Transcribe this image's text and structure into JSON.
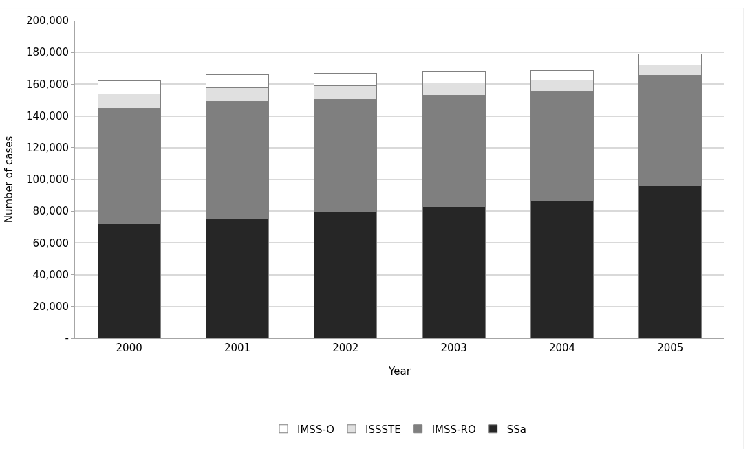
{
  "chart_data": {
    "type": "bar",
    "stacked": true,
    "xlabel": "Year",
    "ylabel": "Number of cases",
    "categories": [
      "2000",
      "2001",
      "2002",
      "2003",
      "2004",
      "2005"
    ],
    "series": [
      {
        "name": "SSa",
        "color": "#262626",
        "values": [
          72000,
          75500,
          79700,
          83100,
          86600,
          96000
        ]
      },
      {
        "name": "IMSS-RO",
        "color": "#7f7f7f",
        "values": [
          73000,
          73700,
          70800,
          70000,
          68800,
          69800
        ]
      },
      {
        "name": "ISSSTE",
        "color": "#e0e0e0",
        "values": [
          9000,
          8600,
          8400,
          7800,
          7300,
          6100
        ]
      },
      {
        "name": "IMSS-O",
        "color": "#ffffff",
        "values": [
          8000,
          8200,
          8000,
          7300,
          6100,
          7100
        ]
      }
    ],
    "ylim": [
      0,
      200000
    ],
    "yticks": [
      {
        "value": 0,
        "label": "-"
      },
      {
        "value": 20000,
        "label": "20,000"
      },
      {
        "value": 40000,
        "label": "40,000"
      },
      {
        "value": 60000,
        "label": "60,000"
      },
      {
        "value": 80000,
        "label": "80,000"
      },
      {
        "value": 100000,
        "label": "100,000"
      },
      {
        "value": 120000,
        "label": "120,000"
      },
      {
        "value": 140000,
        "label": "140,000"
      },
      {
        "value": 160000,
        "label": "160,000"
      },
      {
        "value": 180000,
        "label": "180,000"
      },
      {
        "value": 200000,
        "label": "200,000"
      }
    ],
    "grid": "y",
    "legend": "bottom"
  }
}
